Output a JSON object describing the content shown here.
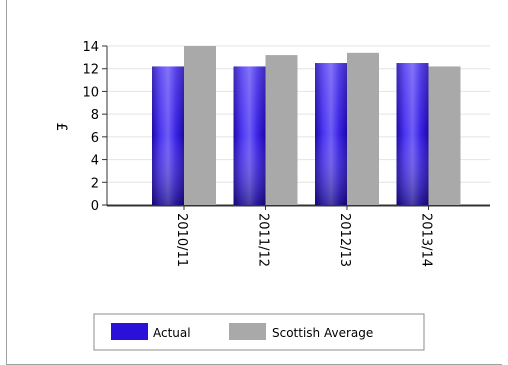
{
  "chart_data": {
    "type": "bar",
    "categories": [
      "2010/11",
      "2011/12",
      "2012/13",
      "2013/14"
    ],
    "series": [
      {
        "name": "Actual",
        "values": [
          12.2,
          12.2,
          12.5,
          12.5
        ],
        "color": "#2a10d8"
      },
      {
        "name": "Scottish Average",
        "values": [
          14.0,
          13.2,
          13.4,
          12.2
        ],
        "color": "#a9a9a9"
      }
    ],
    "title": "",
    "xlabel": "",
    "ylabel": "£",
    "ylim": [
      0,
      14
    ],
    "yticks": [
      0,
      2,
      4,
      6,
      8,
      10,
      12,
      14
    ],
    "grid": true,
    "legend_position": "bottom"
  }
}
